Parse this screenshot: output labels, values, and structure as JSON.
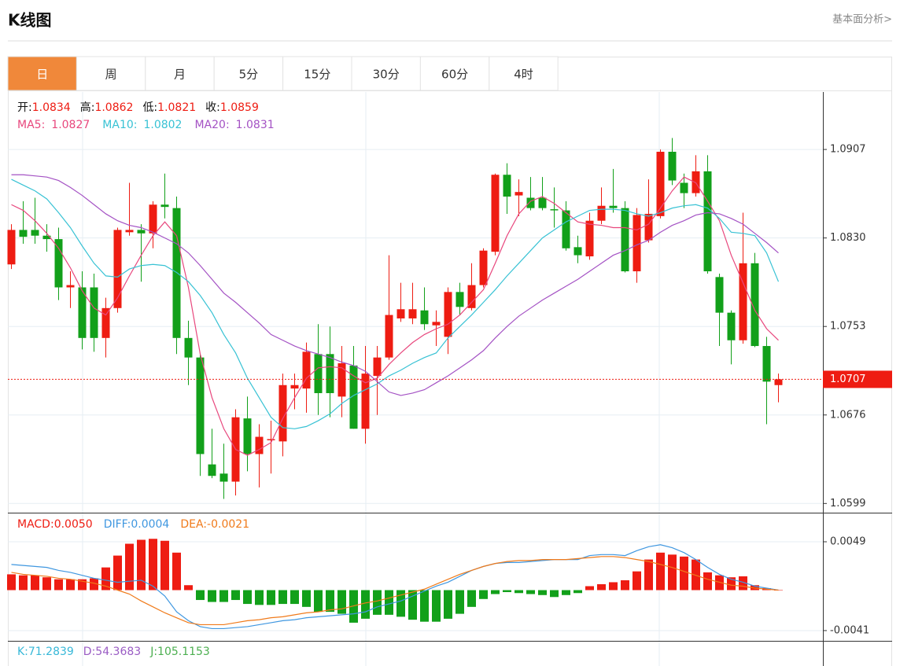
{
  "header": {
    "title": "K线图",
    "link": "基本面分析>"
  },
  "tabs": {
    "items": [
      "日",
      "周",
      "月",
      "5分",
      "15分",
      "30分",
      "60分",
      "4时"
    ],
    "active": 0,
    "active_color": "#f0883a"
  },
  "chart_data": {
    "type": "candlestick",
    "up_color": "#ee1c12",
    "down_color": "#12a01a",
    "ylim": [
      1.0591,
      1.0957
    ],
    "yticks": [
      1.0599,
      1.0676,
      1.0753,
      {
        "value": 1.083,
        "label": "1.0830"
      },
      1.0907
    ],
    "grid": true,
    "current_price": 1.0707,
    "ohlc_readout": [
      {
        "label": "开:",
        "value": "1.0834"
      },
      {
        "label": "高:",
        "value": "1.0862"
      },
      {
        "label": "低:",
        "value": "1.0821"
      },
      {
        "label": "收:",
        "value": "1.0859"
      }
    ],
    "open": [
      1.0807,
      1.0837,
      1.0837,
      1.0832,
      1.0829,
      1.0787,
      1.0787,
      1.0787,
      1.0743,
      1.0769,
      1.0835,
      1.0837,
      1.0834,
      1.0859,
      1.0856,
      1.0743,
      1.0726,
      1.0633,
      1.0625,
      1.0618,
      1.0673,
      1.0642,
      1.0654,
      1.0653,
      1.0699,
      1.0699,
      1.0729,
      1.0729,
      1.0692,
      1.0719,
      1.0664,
      1.071,
      1.0726,
      1.076,
      1.076,
      1.0767,
      1.0754,
      1.0744,
      1.0783,
      1.0769,
      1.0789,
      1.0818,
      1.0885,
      1.0867,
      1.0865,
      1.0865,
      1.0855,
      1.0854,
      1.0822,
      1.0814,
      1.0845,
      1.0858,
      1.0856,
      1.0801,
      1.0828,
      1.0849,
      1.0905,
      1.0878,
      1.0869,
      1.0888,
      1.0796,
      1.0765,
      1.0741,
      1.0808,
      1.0736,
      1.0702
    ],
    "high": [
      1.0842,
      1.0862,
      1.0865,
      1.0842,
      1.0839,
      1.0801,
      1.0801,
      1.0799,
      1.0778,
      1.0839,
      1.0878,
      1.0842,
      1.0862,
      1.0886,
      1.0866,
      1.0758,
      1.0729,
      1.0664,
      1.0651,
      1.0681,
      1.0692,
      1.0668,
      1.0671,
      1.0712,
      1.0712,
      1.0739,
      1.0755,
      1.0753,
      1.0736,
      1.0736,
      1.0736,
      1.0736,
      1.0815,
      1.0791,
      1.0791,
      1.0787,
      1.0767,
      1.0787,
      1.0791,
      1.0808,
      1.0821,
      1.0886,
      1.0895,
      1.0881,
      1.0883,
      1.0883,
      1.0874,
      1.0862,
      1.0832,
      1.0852,
      1.0874,
      1.089,
      1.0862,
      1.0856,
      1.0881,
      1.0907,
      1.0917,
      1.0886,
      1.0902,
      1.0902,
      1.0799,
      1.0767,
      1.0852,
      1.0817,
      1.0744,
      1.0712
    ],
    "low": [
      1.0803,
      1.0825,
      1.0825,
      1.0818,
      1.0776,
      1.0769,
      1.0733,
      1.0731,
      1.0726,
      1.0765,
      1.0832,
      1.0792,
      1.0821,
      1.0847,
      1.0729,
      1.0702,
      1.0623,
      1.0621,
      1.0603,
      1.0606,
      1.0627,
      1.0613,
      1.0625,
      1.064,
      1.0681,
      1.0678,
      1.0676,
      1.0674,
      1.0674,
      1.0664,
      1.0651,
      1.0676,
      1.0724,
      1.0757,
      1.0755,
      1.075,
      1.0736,
      1.0729,
      1.0763,
      1.0767,
      1.0787,
      1.0815,
      1.0851,
      1.0849,
      1.0854,
      1.0854,
      1.0839,
      1.0819,
      1.0808,
      1.0811,
      1.0842,
      1.0852,
      1.08,
      1.0791,
      1.0826,
      1.0847,
      1.0876,
      1.0856,
      1.0866,
      1.0799,
      1.0736,
      1.072,
      1.0738,
      1.0735,
      1.0668,
      1.0687
    ],
    "close": [
      1.0837,
      1.0831,
      1.0832,
      1.0829,
      1.0787,
      1.0789,
      1.0743,
      1.0743,
      1.0769,
      1.0837,
      1.0837,
      1.0834,
      1.0859,
      1.0857,
      1.0743,
      1.0726,
      1.0642,
      1.0623,
      1.0618,
      1.0674,
      1.0642,
      1.0657,
      1.0655,
      1.0702,
      1.0702,
      1.0731,
      1.0695,
      1.0695,
      1.0721,
      1.0664,
      1.0712,
      1.0726,
      1.0763,
      1.0768,
      1.0768,
      1.0755,
      1.0757,
      1.0783,
      1.077,
      1.0789,
      1.0819,
      1.0885,
      1.0866,
      1.087,
      1.0856,
      1.0856,
      1.0854,
      1.0821,
      1.0815,
      1.0845,
      1.0858,
      1.0856,
      1.0801,
      1.085,
      1.0851,
      1.0905,
      1.088,
      1.0869,
      1.0888,
      1.0801,
      1.0765,
      1.0741,
      1.0808,
      1.0736,
      1.0705,
      1.0707
    ],
    "ma": [
      {
        "name": "MA5:",
        "readout": "1.0827",
        "color": "#e8477d",
        "values": [
          1.0859,
          1.0854,
          1.0845,
          1.0834,
          1.0821,
          1.0804,
          1.0784,
          1.0769,
          1.0763,
          1.0778,
          1.0797,
          1.0815,
          1.0832,
          1.0844,
          1.0832,
          1.0787,
          1.0729,
          1.0691,
          1.0664,
          1.0646,
          1.0641,
          1.0646,
          1.0652,
          1.0673,
          1.0691,
          1.0708,
          1.0717,
          1.0718,
          1.0717,
          1.071,
          1.0704,
          1.0708,
          1.072,
          1.073,
          1.0739,
          1.0746,
          1.0751,
          1.0755,
          1.0763,
          1.0774,
          1.0785,
          1.0808,
          1.0832,
          1.0851,
          1.0862,
          1.0866,
          1.086,
          1.0852,
          1.0844,
          1.0842,
          1.0841,
          1.0839,
          1.0839,
          1.0837,
          1.0842,
          1.0856,
          1.0871,
          1.0883,
          1.0878,
          1.0862,
          1.0845,
          1.0815,
          1.0791,
          1.0767,
          1.0751,
          1.0741
        ]
      },
      {
        "name": "MA10:",
        "readout": "1.0802",
        "color": "#38c2d4",
        "values": [
          1.0881,
          1.0876,
          1.0871,
          1.0864,
          1.0852,
          1.0839,
          1.0823,
          1.0808,
          1.0797,
          1.0796,
          1.0803,
          1.0806,
          1.0807,
          1.0806,
          1.08,
          1.0792,
          1.078,
          1.0765,
          1.0746,
          1.073,
          1.0708,
          1.0691,
          1.0674,
          1.0665,
          1.0664,
          1.0666,
          1.0671,
          1.0677,
          1.0686,
          1.0693,
          1.0698,
          1.0703,
          1.071,
          1.0715,
          1.0721,
          1.0726,
          1.073,
          1.0743,
          1.0753,
          1.0763,
          1.0774,
          1.0785,
          1.0797,
          1.0808,
          1.0819,
          1.083,
          1.0837,
          1.0844,
          1.0849,
          1.0854,
          1.0855,
          1.0855,
          1.0854,
          1.0851,
          1.0849,
          1.0852,
          1.0856,
          1.0858,
          1.0859,
          1.0856,
          1.0847,
          1.0835,
          1.0834,
          1.0832,
          1.0817,
          1.0792
        ]
      },
      {
        "name": "MA20:",
        "readout": "1.0831",
        "color": "#a452c4",
        "values": [
          1.0885,
          1.0885,
          1.0884,
          1.0883,
          1.088,
          1.0874,
          1.0867,
          1.0859,
          1.0851,
          1.0845,
          1.0841,
          1.0839,
          1.0835,
          1.083,
          1.0825,
          1.0817,
          1.0806,
          1.0794,
          1.0782,
          1.0774,
          1.0765,
          1.0756,
          1.0746,
          1.0741,
          1.0736,
          1.0732,
          1.0729,
          1.0726,
          1.0722,
          1.0719,
          1.0714,
          1.0705,
          1.0696,
          1.0693,
          1.0695,
          1.0698,
          1.0704,
          1.071,
          1.0717,
          1.0724,
          1.0732,
          1.0743,
          1.0753,
          1.0762,
          1.0769,
          1.0776,
          1.0782,
          1.0788,
          1.0794,
          1.0801,
          1.0808,
          1.0815,
          1.0819,
          1.0824,
          1.0828,
          1.0835,
          1.0841,
          1.0845,
          1.085,
          1.0852,
          1.0851,
          1.0847,
          1.0842,
          1.0834,
          1.0826,
          1.0817
        ]
      }
    ],
    "macd": {
      "ylim": [
        -0.00514,
        0.00777
      ],
      "yticks": [
        0.0049,
        -0.0041
      ],
      "histogram": {
        "name": "MACD:",
        "readout": "0.0050",
        "color": "#ee1c12",
        "values": [
          0.0016,
          0.0015,
          0.0015,
          0.0013,
          0.0011,
          0.0011,
          0.0011,
          0.0012,
          0.0023,
          0.0035,
          0.0047,
          0.0051,
          0.0052,
          0.005,
          0.0038,
          0.0005,
          -0.001,
          -0.0012,
          -0.0012,
          -0.001,
          -0.0014,
          -0.0015,
          -0.0015,
          -0.0014,
          -0.0014,
          -0.0017,
          -0.0022,
          -0.0022,
          -0.0024,
          -0.0033,
          -0.0029,
          -0.0025,
          -0.0025,
          -0.0027,
          -0.003,
          -0.0032,
          -0.0032,
          -0.0029,
          -0.0024,
          -0.0017,
          -0.0009,
          -0.0004,
          -0.0002,
          -0.0003,
          -0.0004,
          -0.0005,
          -0.0007,
          -0.0005,
          -0.0003,
          0.0004,
          0.0006,
          0.0008,
          0.001,
          0.0019,
          0.0031,
          0.0038,
          0.0036,
          0.0034,
          0.0031,
          0.0018,
          0.0015,
          0.0013,
          0.0014,
          0.0005,
          0.0002,
          0
        ]
      },
      "lines": [
        {
          "name": "DIFF:",
          "readout": "0.0004",
          "color": "#3f97e0",
          "values": [
            0.0026,
            0.0025,
            0.0024,
            0.0023,
            0.002,
            0.0018,
            0.0015,
            0.0012,
            0.001,
            0.0008,
            0.0009,
            0.001,
            0.0004,
            -0.0006,
            -0.0022,
            -0.0031,
            -0.0037,
            -0.0039,
            -0.0039,
            -0.0038,
            -0.0037,
            -0.0035,
            -0.0033,
            -0.0031,
            -0.003,
            -0.0028,
            -0.0027,
            -0.0026,
            -0.0025,
            -0.0024,
            -0.0022,
            -0.0017,
            -0.0014,
            -0.0011,
            -0.0006,
            -0.0001,
            0.0004,
            0.0008,
            0.0014,
            0.002,
            0.0024,
            0.0027,
            0.0028,
            0.0028,
            0.0029,
            0.003,
            0.0031,
            0.0031,
            0.0031,
            0.0035,
            0.0036,
            0.0036,
            0.0035,
            0.004,
            0.0044,
            0.0046,
            0.0043,
            0.0038,
            0.0031,
            0.0023,
            0.0016,
            0.0011,
            0.0008,
            0.0004,
            0.0002,
            0
          ]
        },
        {
          "name": "DEA:",
          "readout": "-0.0021",
          "color": "#f07a1a",
          "values": [
            0.0018,
            0.0016,
            0.0015,
            0.0014,
            0.0012,
            0.0011,
            0.0009,
            0.0007,
            0.0004,
            0,
            -0.0004,
            -0.0011,
            -0.0017,
            -0.0023,
            -0.0028,
            -0.0033,
            -0.0035,
            -0.0035,
            -0.0035,
            -0.0033,
            -0.0031,
            -0.003,
            -0.0028,
            -0.0027,
            -0.0025,
            -0.0023,
            -0.0022,
            -0.002,
            -0.0019,
            -0.0016,
            -0.0013,
            -0.0011,
            -0.0008,
            -0.0005,
            -0.0002,
            0.0001,
            0.0006,
            0.0011,
            0.0016,
            0.002,
            0.0024,
            0.0027,
            0.0029,
            0.003,
            0.003,
            0.0031,
            0.0031,
            0.0031,
            0.0032,
            0.0033,
            0.0034,
            0.0034,
            0.0033,
            0.0031,
            0.0029,
            0.0026,
            0.0023,
            0.0019,
            0.0015,
            0.0011,
            0.0008,
            0.0005,
            0.0004,
            0.0002,
            0.0001,
            0
          ]
        }
      ]
    },
    "kdj_readout": [
      {
        "text": "K:71.2839",
        "color": "#38b8d8"
      },
      {
        "text": "D:54.3683",
        "color": "#9a5cc4"
      },
      {
        "text": "J:105.1153",
        "color": "#4caf50"
      }
    ]
  }
}
